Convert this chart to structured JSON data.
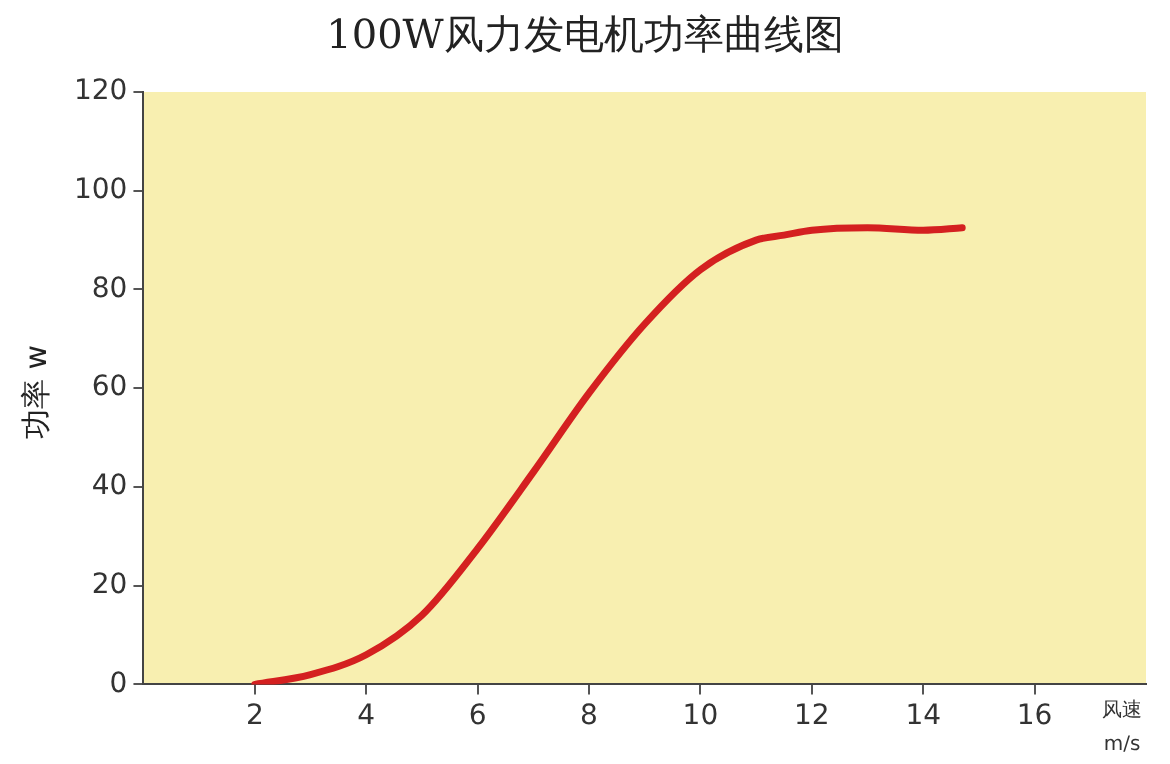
{
  "chart_data": {
    "type": "line",
    "title": "100W风力发电机功率曲线图",
    "xlabel": "风速\nm/s",
    "ylabel": "功率 w",
    "series": [
      {
        "color": "#d42020",
        "x": [
          2,
          3,
          4,
          5,
          6,
          7,
          8,
          9,
          10,
          11,
          11.5,
          12,
          13,
          14,
          14.7
        ],
        "values": [
          0,
          2,
          6,
          14,
          27.5,
          43,
          59,
          73,
          84,
          90,
          91,
          92,
          92.5,
          92,
          92.5
        ]
      }
    ],
    "xlim": [
      0,
      18
    ],
    "xticks": [
      2,
      4,
      6,
      8,
      10,
      12,
      14,
      16
    ],
    "ylim": [
      0,
      120
    ],
    "yticks": [
      0,
      20,
      40,
      60,
      80,
      100,
      120
    ],
    "grid": false,
    "legend": false,
    "marker": "none",
    "line_style": "solid"
  }
}
